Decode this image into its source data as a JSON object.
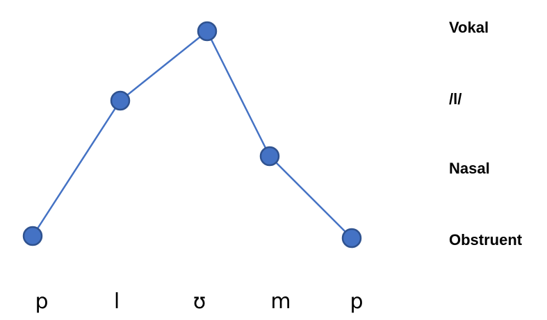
{
  "levels": [
    "Vokal",
    "/l/",
    "Nasal",
    "Obstruent"
  ],
  "segments": [
    {
      "symbol": "p",
      "level": "Obstruent"
    },
    {
      "symbol": "l",
      "level": "/l/"
    },
    {
      "symbol": "ʊ",
      "level": "Vokal"
    },
    {
      "symbol": "m",
      "level": "Nasal"
    },
    {
      "symbol": "p",
      "level": "Obstruent"
    }
  ],
  "colors": {
    "node_fill": "#4472c4",
    "node_stroke": "#2f528f",
    "line": "#4472c4"
  }
}
